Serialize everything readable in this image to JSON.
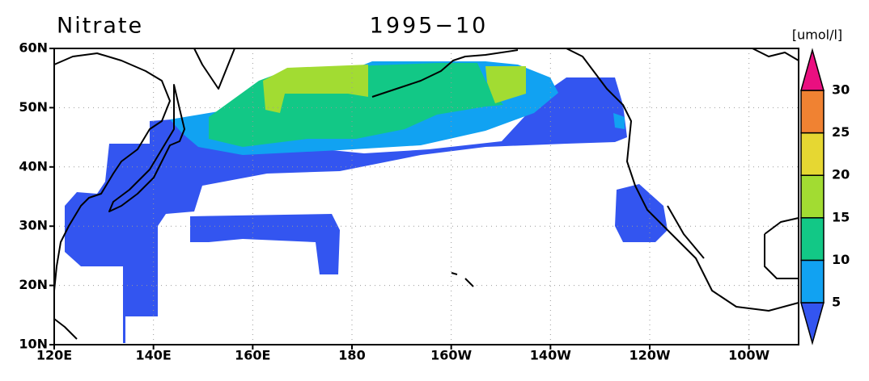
{
  "map": {
    "title": "Nitrate",
    "subtitle": "1995−10",
    "unit": "[umol/l]",
    "lat_ticks": [
      {
        "value": 60,
        "label": "60N"
      },
      {
        "value": 50,
        "label": "50N"
      },
      {
        "value": 40,
        "label": "40N"
      },
      {
        "value": 30,
        "label": "30N"
      },
      {
        "value": 20,
        "label": "20N"
      },
      {
        "value": 10,
        "label": "10N"
      }
    ],
    "lon_ticks": [
      {
        "value": 120,
        "label": "120E"
      },
      {
        "value": 140,
        "label": "140E"
      },
      {
        "value": 160,
        "label": "160E"
      },
      180,
      {
        "value": 200,
        "label": "160W"
      },
      {
        "value": 220,
        "label": "140W"
      },
      {
        "value": 240,
        "label": "120W"
      },
      {
        "value": 260,
        "label": "100W"
      }
    ],
    "colorbar": {
      "levels": [
        5,
        10,
        15,
        20,
        25,
        30
      ],
      "colors": [
        "#3355f0",
        "#11a2f2",
        "#12c886",
        "#a2dc32",
        "#e6d732",
        "#f08232",
        "#ea0f80"
      ]
    }
  }
}
